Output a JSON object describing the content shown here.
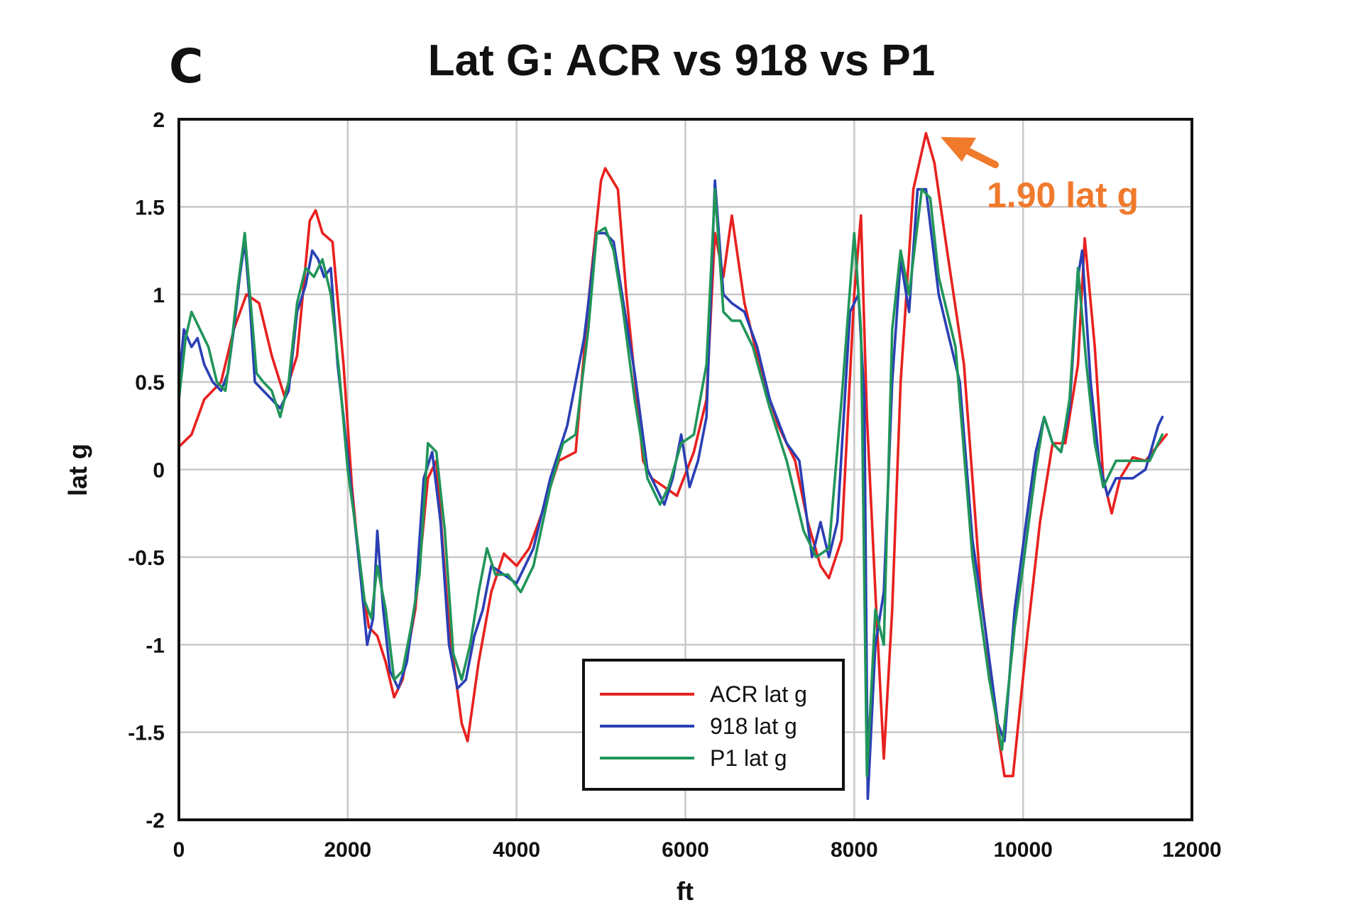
{
  "panel_label": "C",
  "colors": {
    "acr": "#e8211f",
    "p918": "#2a3fb5",
    "p1": "#21955a",
    "annotation": "#f07a2c",
    "grid": "#c8c8c8",
    "frame": "#111111"
  },
  "chart_data": {
    "type": "line",
    "title": "Lat G: ACR vs 918 vs P1",
    "xlabel": "ft",
    "ylabel": "lat g",
    "xlim": [
      0,
      12000
    ],
    "ylim": [
      -2,
      2
    ],
    "x_ticks": [
      0,
      2000,
      4000,
      6000,
      8000,
      10000,
      12000
    ],
    "x_tick_labels": [
      "0",
      "2000",
      "4000",
      "6000",
      "8000",
      "10000",
      "12000"
    ],
    "y_ticks": [
      2,
      1.5,
      1,
      0.5,
      0,
      -0.5,
      -1,
      -1.5,
      -2
    ],
    "y_tick_labels": [
      "2",
      "1.5",
      "1",
      "0.5",
      "0",
      "-0.5",
      "-1",
      "-1.5",
      "-2"
    ],
    "grid": true,
    "legend_position": "bottom-center",
    "legend": [
      "ACR lat g",
      "918 lat g",
      "P1 lat g"
    ],
    "annotation": {
      "text": "1.90 lat g",
      "x": 8850,
      "y": 1.9
    },
    "series": [
      {
        "name": "ACR lat g",
        "color": "#e8211f",
        "points": [
          [
            0,
            0.13
          ],
          [
            150,
            0.2
          ],
          [
            300,
            0.4
          ],
          [
            500,
            0.5
          ],
          [
            650,
            0.8
          ],
          [
            800,
            1.0
          ],
          [
            950,
            0.95
          ],
          [
            1100,
            0.65
          ],
          [
            1250,
            0.42
          ],
          [
            1400,
            0.65
          ],
          [
            1550,
            1.42
          ],
          [
            1620,
            1.48
          ],
          [
            1700,
            1.35
          ],
          [
            1820,
            1.3
          ],
          [
            1950,
            0.6
          ],
          [
            2050,
            -0.1
          ],
          [
            2150,
            -0.6
          ],
          [
            2250,
            -0.9
          ],
          [
            2350,
            -0.95
          ],
          [
            2450,
            -1.1
          ],
          [
            2550,
            -1.3
          ],
          [
            2650,
            -1.2
          ],
          [
            2800,
            -0.8
          ],
          [
            2950,
            -0.05
          ],
          [
            3050,
            0.05
          ],
          [
            3200,
            -0.9
          ],
          [
            3350,
            -1.45
          ],
          [
            3420,
            -1.55
          ],
          [
            3550,
            -1.1
          ],
          [
            3700,
            -0.7
          ],
          [
            3850,
            -0.48
          ],
          [
            4000,
            -0.55
          ],
          [
            4150,
            -0.45
          ],
          [
            4300,
            -0.25
          ],
          [
            4500,
            0.05
          ],
          [
            4700,
            0.1
          ],
          [
            4850,
            0.95
          ],
          [
            5000,
            1.65
          ],
          [
            5050,
            1.72
          ],
          [
            5200,
            1.6
          ],
          [
            5300,
            1.0
          ],
          [
            5500,
            0.05
          ],
          [
            5600,
            -0.05
          ],
          [
            5750,
            -0.1
          ],
          [
            5900,
            -0.15
          ],
          [
            6100,
            0.1
          ],
          [
            6250,
            0.4
          ],
          [
            6350,
            1.35
          ],
          [
            6450,
            1.1
          ],
          [
            6550,
            1.45
          ],
          [
            6700,
            0.95
          ],
          [
            6900,
            0.55
          ],
          [
            7100,
            0.25
          ],
          [
            7300,
            0.05
          ],
          [
            7450,
            -0.3
          ],
          [
            7600,
            -0.55
          ],
          [
            7700,
            -0.62
          ],
          [
            7850,
            -0.4
          ],
          [
            8000,
            1.0
          ],
          [
            8080,
            1.45
          ],
          [
            8150,
            0.3
          ],
          [
            8250,
            -0.7
          ],
          [
            8350,
            -1.65
          ],
          [
            8450,
            -0.8
          ],
          [
            8550,
            0.5
          ],
          [
            8700,
            1.6
          ],
          [
            8850,
            1.92
          ],
          [
            8950,
            1.75
          ],
          [
            9100,
            1.25
          ],
          [
            9300,
            0.6
          ],
          [
            9500,
            -0.7
          ],
          [
            9700,
            -1.5
          ],
          [
            9780,
            -1.75
          ],
          [
            9880,
            -1.75
          ],
          [
            10050,
            -0.95
          ],
          [
            10200,
            -0.3
          ],
          [
            10350,
            0.15
          ],
          [
            10500,
            0.15
          ],
          [
            10650,
            0.6
          ],
          [
            10730,
            1.32
          ],
          [
            10850,
            0.7
          ],
          [
            10950,
            -0.05
          ],
          [
            11050,
            -0.25
          ],
          [
            11150,
            -0.05
          ],
          [
            11300,
            0.07
          ],
          [
            11450,
            0.05
          ],
          [
            11700,
            0.2
          ]
        ]
      },
      {
        "name": "918 lat g",
        "color": "#2a3fb5",
        "points": [
          [
            0,
            0.5
          ],
          [
            60,
            0.8
          ],
          [
            150,
            0.7
          ],
          [
            220,
            0.75
          ],
          [
            300,
            0.6
          ],
          [
            400,
            0.5
          ],
          [
            500,
            0.45
          ],
          [
            580,
            0.55
          ],
          [
            650,
            0.8
          ],
          [
            720,
            1.1
          ],
          [
            780,
            1.3
          ],
          [
            840,
            0.95
          ],
          [
            900,
            0.5
          ],
          [
            1000,
            0.45
          ],
          [
            1100,
            0.4
          ],
          [
            1200,
            0.35
          ],
          [
            1300,
            0.45
          ],
          [
            1400,
            0.9
          ],
          [
            1500,
            1.05
          ],
          [
            1580,
            1.25
          ],
          [
            1650,
            1.2
          ],
          [
            1720,
            1.1
          ],
          [
            1800,
            1.15
          ],
          [
            1880,
            0.6
          ],
          [
            1950,
            0.3
          ],
          [
            2050,
            -0.15
          ],
          [
            2150,
            -0.6
          ],
          [
            2230,
            -1.0
          ],
          [
            2300,
            -0.85
          ],
          [
            2350,
            -0.35
          ],
          [
            2420,
            -0.8
          ],
          [
            2500,
            -1.15
          ],
          [
            2600,
            -1.25
          ],
          [
            2700,
            -1.1
          ],
          [
            2800,
            -0.75
          ],
          [
            2900,
            -0.05
          ],
          [
            3000,
            0.1
          ],
          [
            3100,
            -0.3
          ],
          [
            3200,
            -1.0
          ],
          [
            3300,
            -1.25
          ],
          [
            3400,
            -1.2
          ],
          [
            3500,
            -0.95
          ],
          [
            3600,
            -0.8
          ],
          [
            3700,
            -0.55
          ],
          [
            3850,
            -0.6
          ],
          [
            4000,
            -0.65
          ],
          [
            4200,
            -0.45
          ],
          [
            4400,
            -0.05
          ],
          [
            4600,
            0.25
          ],
          [
            4800,
            0.75
          ],
          [
            4950,
            1.35
          ],
          [
            5050,
            1.35
          ],
          [
            5150,
            1.3
          ],
          [
            5250,
            1.0
          ],
          [
            5400,
            0.55
          ],
          [
            5550,
            0.0
          ],
          [
            5650,
            -0.1
          ],
          [
            5750,
            -0.2
          ],
          [
            5850,
            -0.05
          ],
          [
            5950,
            0.2
          ],
          [
            6050,
            -0.1
          ],
          [
            6150,
            0.05
          ],
          [
            6250,
            0.3
          ],
          [
            6350,
            1.65
          ],
          [
            6450,
            1.0
          ],
          [
            6550,
            0.95
          ],
          [
            6700,
            0.9
          ],
          [
            6850,
            0.7
          ],
          [
            7000,
            0.4
          ],
          [
            7200,
            0.15
          ],
          [
            7350,
            0.05
          ],
          [
            7500,
            -0.5
          ],
          [
            7600,
            -0.3
          ],
          [
            7700,
            -0.5
          ],
          [
            7800,
            -0.3
          ],
          [
            7950,
            0.9
          ],
          [
            8050,
            1.0
          ],
          [
            8120,
            0.4
          ],
          [
            8160,
            -1.88
          ],
          [
            8250,
            -1.0
          ],
          [
            8350,
            -0.7
          ],
          [
            8450,
            0.5
          ],
          [
            8550,
            1.2
          ],
          [
            8650,
            0.9
          ],
          [
            8750,
            1.6
          ],
          [
            8850,
            1.6
          ],
          [
            9000,
            1.0
          ],
          [
            9100,
            0.8
          ],
          [
            9250,
            0.5
          ],
          [
            9400,
            -0.4
          ],
          [
            9550,
            -0.9
          ],
          [
            9700,
            -1.45
          ],
          [
            9780,
            -1.55
          ],
          [
            9900,
            -0.8
          ],
          [
            10050,
            -0.25
          ],
          [
            10150,
            0.1
          ],
          [
            10250,
            0.3
          ],
          [
            10350,
            0.15
          ],
          [
            10450,
            0.1
          ],
          [
            10550,
            0.35
          ],
          [
            10650,
            1.1
          ],
          [
            10700,
            1.25
          ],
          [
            10800,
            0.5
          ],
          [
            10900,
            0.05
          ],
          [
            11000,
            -0.15
          ],
          [
            11100,
            -0.05
          ],
          [
            11300,
            -0.05
          ],
          [
            11450,
            0.0
          ],
          [
            11600,
            0.25
          ],
          [
            11650,
            0.3
          ]
        ]
      },
      {
        "name": "P1 lat g",
        "color": "#21955a",
        "points": [
          [
            0,
            0.4
          ],
          [
            80,
            0.75
          ],
          [
            150,
            0.9
          ],
          [
            250,
            0.8
          ],
          [
            350,
            0.7
          ],
          [
            450,
            0.5
          ],
          [
            550,
            0.45
          ],
          [
            620,
            0.7
          ],
          [
            700,
            1.05
          ],
          [
            780,
            1.35
          ],
          [
            850,
            0.95
          ],
          [
            920,
            0.55
          ],
          [
            1000,
            0.5
          ],
          [
            1100,
            0.45
          ],
          [
            1200,
            0.3
          ],
          [
            1300,
            0.5
          ],
          [
            1400,
            0.95
          ],
          [
            1500,
            1.15
          ],
          [
            1600,
            1.1
          ],
          [
            1700,
            1.2
          ],
          [
            1800,
            1.0
          ],
          [
            1900,
            0.55
          ],
          [
            2000,
            0.0
          ],
          [
            2100,
            -0.35
          ],
          [
            2200,
            -0.75
          ],
          [
            2280,
            -0.85
          ],
          [
            2350,
            -0.55
          ],
          [
            2450,
            -0.8
          ],
          [
            2550,
            -1.2
          ],
          [
            2650,
            -1.15
          ],
          [
            2750,
            -0.9
          ],
          [
            2850,
            -0.6
          ],
          [
            2950,
            0.15
          ],
          [
            3050,
            0.1
          ],
          [
            3150,
            -0.35
          ],
          [
            3250,
            -1.05
          ],
          [
            3350,
            -1.2
          ],
          [
            3450,
            -1.0
          ],
          [
            3550,
            -0.7
          ],
          [
            3650,
            -0.45
          ],
          [
            3750,
            -0.6
          ],
          [
            3900,
            -0.6
          ],
          [
            4050,
            -0.7
          ],
          [
            4200,
            -0.55
          ],
          [
            4400,
            -0.1
          ],
          [
            4550,
            0.15
          ],
          [
            4700,
            0.2
          ],
          [
            4850,
            0.8
          ],
          [
            4950,
            1.35
          ],
          [
            5050,
            1.38
          ],
          [
            5150,
            1.25
          ],
          [
            5250,
            0.95
          ],
          [
            5400,
            0.4
          ],
          [
            5550,
            -0.05
          ],
          [
            5700,
            -0.2
          ],
          [
            5800,
            -0.1
          ],
          [
            5950,
            0.15
          ],
          [
            6100,
            0.2
          ],
          [
            6250,
            0.6
          ],
          [
            6350,
            1.6
          ],
          [
            6450,
            0.9
          ],
          [
            6550,
            0.85
          ],
          [
            6650,
            0.85
          ],
          [
            6800,
            0.7
          ],
          [
            7000,
            0.35
          ],
          [
            7200,
            0.05
          ],
          [
            7400,
            -0.35
          ],
          [
            7550,
            -0.5
          ],
          [
            7700,
            -0.45
          ],
          [
            7850,
            0.4
          ],
          [
            8000,
            1.35
          ],
          [
            8080,
            0.8
          ],
          [
            8150,
            -1.75
          ],
          [
            8250,
            -0.8
          ],
          [
            8350,
            -1.0
          ],
          [
            8450,
            0.8
          ],
          [
            8550,
            1.25
          ],
          [
            8650,
            1.0
          ],
          [
            8800,
            1.6
          ],
          [
            8900,
            1.55
          ],
          [
            9000,
            1.1
          ],
          [
            9200,
            0.7
          ],
          [
            9400,
            -0.5
          ],
          [
            9600,
            -1.2
          ],
          [
            9750,
            -1.6
          ],
          [
            9900,
            -0.9
          ],
          [
            10000,
            -0.55
          ],
          [
            10150,
            0.0
          ],
          [
            10250,
            0.3
          ],
          [
            10350,
            0.15
          ],
          [
            10450,
            0.1
          ],
          [
            10550,
            0.4
          ],
          [
            10650,
            1.15
          ],
          [
            10750,
            0.6
          ],
          [
            10850,
            0.15
          ],
          [
            10950,
            -0.1
          ],
          [
            11100,
            0.05
          ],
          [
            11300,
            0.05
          ],
          [
            11500,
            0.05
          ],
          [
            11650,
            0.2
          ]
        ]
      }
    ]
  }
}
